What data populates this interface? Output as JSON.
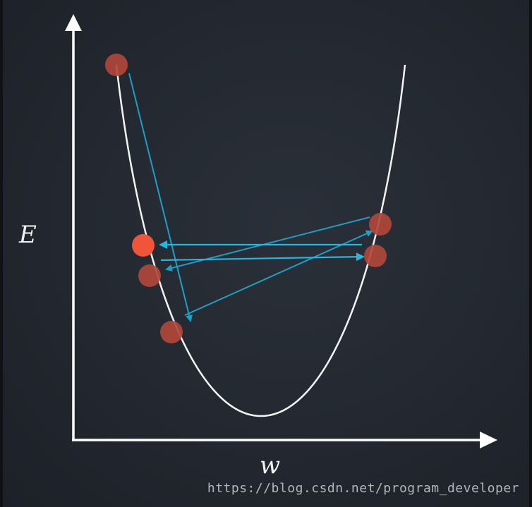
{
  "diagram": {
    "y_axis_label": "E",
    "x_axis_label": "w",
    "watermark": "https://blog.csdn.net/program_developer"
  },
  "colors": {
    "background": "#232830",
    "axis": "#ffffff",
    "curve": "#ffffff",
    "step_arrows": "#1f9fc4",
    "highlight_step_arrows": "#27b6e0",
    "point": "#b0463a",
    "current_point": "#f0553a"
  }
}
